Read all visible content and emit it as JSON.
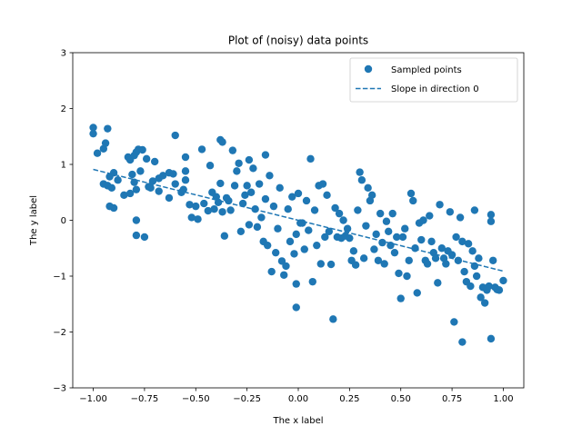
{
  "chart_data": {
    "type": "scatter",
    "title": "Plot of (noisy) data points",
    "xlabel": "The x label",
    "ylabel": "The y label",
    "xlim": [
      -1.1,
      1.1
    ],
    "ylim": [
      -3,
      3
    ],
    "xticks": [
      "−1.00",
      "−0.75",
      "−0.50",
      "−0.25",
      "0.00",
      "0.25",
      "0.50",
      "0.75",
      "1.00"
    ],
    "xtick_values": [
      -1.0,
      -0.75,
      -0.5,
      -0.25,
      0.0,
      0.25,
      0.5,
      0.75,
      1.0
    ],
    "yticks": [
      "−3",
      "−2",
      "−1",
      "0",
      "1",
      "2",
      "3"
    ],
    "ytick_values": [
      -3,
      -2,
      -1,
      0,
      1,
      2,
      3
    ],
    "grid": false,
    "legend_position": "top-right",
    "color": "#1f77b4",
    "series": [
      {
        "name": "Sampled points",
        "kind": "scatter",
        "points": [
          [
            -1.0,
            1.66
          ],
          [
            -1.0,
            1.55
          ],
          [
            -0.98,
            1.2
          ],
          [
            -0.95,
            1.28
          ],
          [
            -0.94,
            1.38
          ],
          [
            -0.93,
            1.64
          ],
          [
            -0.95,
            0.65
          ],
          [
            -0.93,
            0.62
          ],
          [
            -0.91,
            0.58
          ],
          [
            -0.92,
            0.25
          ],
          [
            -0.9,
            0.22
          ],
          [
            -0.92,
            0.78
          ],
          [
            -0.9,
            0.85
          ],
          [
            -0.88,
            0.72
          ],
          [
            -0.85,
            0.45
          ],
          [
            -0.82,
            0.48
          ],
          [
            -0.83,
            1.13
          ],
          [
            -0.82,
            1.08
          ],
          [
            -0.8,
            1.16
          ],
          [
            -0.79,
            1.22
          ],
          [
            -0.78,
            1.27
          ],
          [
            -0.76,
            1.26
          ],
          [
            -0.74,
            1.1
          ],
          [
            -0.73,
            0.6
          ],
          [
            -0.72,
            0.58
          ],
          [
            -0.71,
            0.7
          ],
          [
            -0.77,
            0.88
          ],
          [
            -0.8,
            0.68
          ],
          [
            -0.79,
            0.55
          ],
          [
            -0.81,
            0.82
          ],
          [
            -0.79,
            0.0
          ],
          [
            -0.79,
            -0.27
          ],
          [
            -0.75,
            -0.3
          ],
          [
            -0.7,
            1.05
          ],
          [
            -0.68,
            0.75
          ],
          [
            -0.66,
            0.8
          ],
          [
            -0.68,
            0.52
          ],
          [
            -0.63,
            0.85
          ],
          [
            -0.61,
            0.83
          ],
          [
            -0.6,
            0.65
          ],
          [
            -0.63,
            0.4
          ],
          [
            -0.6,
            1.52
          ],
          [
            -0.57,
            0.5
          ],
          [
            -0.56,
            0.55
          ],
          [
            -0.55,
            1.13
          ],
          [
            -0.55,
            0.88
          ],
          [
            -0.55,
            0.72
          ],
          [
            -0.53,
            0.28
          ],
          [
            -0.52,
            0.05
          ],
          [
            -0.5,
            0.25
          ],
          [
            -0.49,
            0.02
          ],
          [
            -0.47,
            1.27
          ],
          [
            -0.46,
            0.3
          ],
          [
            -0.44,
            0.17
          ],
          [
            -0.43,
            0.98
          ],
          [
            -0.42,
            0.5
          ],
          [
            -0.41,
            0.2
          ],
          [
            -0.4,
            0.42
          ],
          [
            -0.39,
            0.32
          ],
          [
            -0.38,
            1.44
          ],
          [
            -0.37,
            1.4
          ],
          [
            -0.38,
            0.66
          ],
          [
            -0.37,
            0.15
          ],
          [
            -0.36,
            -0.28
          ],
          [
            -0.35,
            0.4
          ],
          [
            -0.34,
            0.35
          ],
          [
            -0.33,
            0.18
          ],
          [
            -0.32,
            1.25
          ],
          [
            -0.31,
            0.62
          ],
          [
            -0.3,
            0.88
          ],
          [
            -0.29,
            1.02
          ],
          [
            -0.28,
            -0.2
          ],
          [
            -0.27,
            0.3
          ],
          [
            -0.26,
            0.45
          ],
          [
            -0.25,
            0.62
          ],
          [
            -0.24,
            1.08
          ],
          [
            -0.24,
            -0.08
          ],
          [
            -0.23,
            0.5
          ],
          [
            -0.22,
            0.93
          ],
          [
            -0.21,
            0.2
          ],
          [
            -0.2,
            -0.12
          ],
          [
            -0.19,
            0.65
          ],
          [
            -0.18,
            0.05
          ],
          [
            -0.17,
            -0.38
          ],
          [
            -0.16,
            0.38
          ],
          [
            -0.16,
            1.17
          ],
          [
            -0.15,
            -0.45
          ],
          [
            -0.14,
            0.8
          ],
          [
            -0.13,
            -0.92
          ],
          [
            -0.12,
            0.25
          ],
          [
            -0.11,
            -0.58
          ],
          [
            -0.1,
            -0.15
          ],
          [
            -0.09,
            0.58
          ],
          [
            -0.08,
            -0.73
          ],
          [
            -0.07,
            -0.98
          ],
          [
            -0.06,
            -0.82
          ],
          [
            -0.05,
            0.2
          ],
          [
            -0.04,
            -0.38
          ],
          [
            -0.03,
            0.42
          ],
          [
            -0.02,
            -0.6
          ],
          [
            -0.01,
            -0.25
          ],
          [
            -0.01,
            -1.14
          ],
          [
            -0.01,
            -1.56
          ],
          [
            0.0,
            0.48
          ],
          [
            0.01,
            -0.05
          ],
          [
            0.02,
            -0.05
          ],
          [
            0.03,
            -0.52
          ],
          [
            0.04,
            0.35
          ],
          [
            0.05,
            -0.18
          ],
          [
            0.06,
            1.1
          ],
          [
            0.07,
            -1.1
          ],
          [
            0.08,
            0.18
          ],
          [
            0.09,
            -0.45
          ],
          [
            0.1,
            0.62
          ],
          [
            0.11,
            -0.78
          ],
          [
            0.12,
            0.65
          ],
          [
            0.13,
            -0.3
          ],
          [
            0.14,
            0.45
          ],
          [
            0.15,
            -0.2
          ],
          [
            0.16,
            -0.79
          ],
          [
            0.17,
            -1.77
          ],
          [
            0.18,
            0.22
          ],
          [
            0.19,
            -0.3
          ],
          [
            0.2,
            0.12
          ],
          [
            0.21,
            -0.32
          ],
          [
            0.22,
            0.0
          ],
          [
            0.23,
            -0.28
          ],
          [
            0.24,
            -0.15
          ],
          [
            0.25,
            -0.32
          ],
          [
            0.26,
            -0.72
          ],
          [
            0.27,
            -0.55
          ],
          [
            0.28,
            -0.8
          ],
          [
            0.29,
            0.18
          ],
          [
            0.3,
            0.86
          ],
          [
            0.31,
            0.72
          ],
          [
            0.32,
            -0.68
          ],
          [
            0.33,
            -0.1
          ],
          [
            0.34,
            0.58
          ],
          [
            0.35,
            0.35
          ],
          [
            0.36,
            0.45
          ],
          [
            0.37,
            -0.52
          ],
          [
            0.38,
            -0.25
          ],
          [
            0.39,
            -0.72
          ],
          [
            0.4,
            0.12
          ],
          [
            0.41,
            -0.4
          ],
          [
            0.42,
            -0.78
          ],
          [
            0.43,
            -0.02
          ],
          [
            0.44,
            -0.2
          ],
          [
            0.45,
            -0.45
          ],
          [
            0.46,
            0.12
          ],
          [
            0.47,
            -0.58
          ],
          [
            0.48,
            -0.3
          ],
          [
            0.49,
            -0.95
          ],
          [
            0.5,
            -1.4
          ],
          [
            0.51,
            -0.3
          ],
          [
            0.52,
            -0.15
          ],
          [
            0.53,
            -1.0
          ],
          [
            0.54,
            -0.72
          ],
          [
            0.55,
            0.48
          ],
          [
            0.56,
            0.35
          ],
          [
            0.57,
            -0.5
          ],
          [
            0.58,
            -1.3
          ],
          [
            0.59,
            -0.05
          ],
          [
            0.6,
            -0.35
          ],
          [
            0.61,
            0.0
          ],
          [
            0.62,
            -0.72
          ],
          [
            0.63,
            -0.78
          ],
          [
            0.64,
            0.08
          ],
          [
            0.65,
            -0.38
          ],
          [
            0.66,
            -0.58
          ],
          [
            0.67,
            -0.68
          ],
          [
            0.68,
            -1.12
          ],
          [
            0.69,
            0.28
          ],
          [
            0.7,
            -0.5
          ],
          [
            0.71,
            -0.68
          ],
          [
            0.72,
            -0.78
          ],
          [
            0.73,
            -0.55
          ],
          [
            0.74,
            0.15
          ],
          [
            0.75,
            -0.62
          ],
          [
            0.76,
            -1.82
          ],
          [
            0.77,
            -0.3
          ],
          [
            0.78,
            -0.72
          ],
          [
            0.79,
            0.05
          ],
          [
            0.8,
            -0.38
          ],
          [
            0.81,
            -0.92
          ],
          [
            0.82,
            -1.1
          ],
          [
            0.83,
            -0.42
          ],
          [
            0.84,
            -1.18
          ],
          [
            0.85,
            -0.55
          ],
          [
            0.86,
            -0.82
          ],
          [
            0.87,
            -1.0
          ],
          [
            0.88,
            -0.68
          ],
          [
            0.89,
            -1.38
          ],
          [
            0.9,
            -1.2
          ],
          [
            0.91,
            -1.48
          ],
          [
            0.92,
            -1.25
          ],
          [
            0.93,
            -1.18
          ],
          [
            0.94,
            -2.12
          ],
          [
            0.94,
            0.1
          ],
          [
            0.94,
            -0.02
          ],
          [
            0.95,
            -0.72
          ],
          [
            0.96,
            -1.2
          ],
          [
            0.97,
            -1.24
          ],
          [
            0.98,
            -1.25
          ],
          [
            1.0,
            -1.08
          ],
          [
            0.8,
            -2.18
          ],
          [
            0.86,
            0.18
          ]
        ]
      },
      {
        "name": "Slope in direction 0",
        "kind": "line",
        "style": "dashed",
        "points": [
          [
            -1.0,
            0.91
          ],
          [
            1.0,
            -0.91
          ]
        ]
      }
    ]
  }
}
